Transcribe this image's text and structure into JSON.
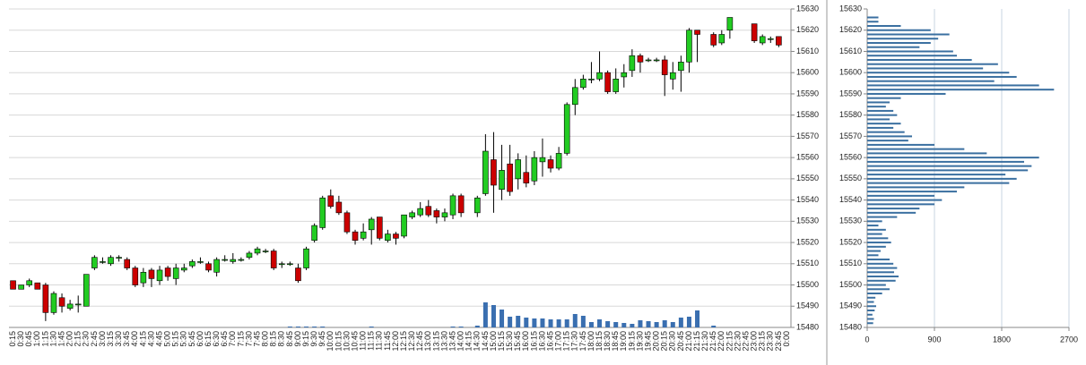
{
  "chart_data": [
    {
      "type": "candlestick",
      "categories": [
        "0:15",
        "0:30",
        "0:45",
        "1:00",
        "1:15",
        "1:30",
        "1:45",
        "2:00",
        "2:15",
        "2:30",
        "2:45",
        "3:00",
        "3:15",
        "3:30",
        "3:45",
        "4:00",
        "4:15",
        "4:30",
        "4:45",
        "5:00",
        "5:15",
        "5:30",
        "5:45",
        "6:00",
        "6:15",
        "6:30",
        "6:45",
        "7:00",
        "7:15",
        "7:30",
        "7:45",
        "8:00",
        "8:15",
        "8:30",
        "8:45",
        "9:00",
        "9:15",
        "9:30",
        "9:45",
        "10:00",
        "10:15",
        "10:30",
        "10:45",
        "11:00",
        "11:15",
        "11:30",
        "11:45",
        "12:00",
        "12:15",
        "12:30",
        "12:45",
        "13:00",
        "13:15",
        "13:30",
        "13:45",
        "14:00",
        "14:15",
        "14:30",
        "14:45",
        "15:00",
        "15:15",
        "15:30",
        "15:45",
        "16:00",
        "16:15",
        "16:30",
        "16:45",
        "17:00",
        "17:15",
        "17:30",
        "17:45",
        "18:00",
        "18:15",
        "18:30",
        "18:45",
        "19:00",
        "19:15",
        "19:30",
        "19:45",
        "20:00",
        "20:15",
        "20:30",
        "20:45",
        "21:00",
        "21:15",
        "21:30",
        "21:45",
        "22:00",
        "22:15",
        "22:30",
        "22:45",
        "23:00",
        "23:15",
        "23:30",
        "23:45",
        "0:00"
      ],
      "open": [
        15502,
        15498,
        15500,
        15501,
        15500,
        15487,
        15494,
        15489,
        15491,
        15490,
        15508,
        15511,
        15510,
        15513,
        15512,
        15508,
        15501,
        15507,
        15502,
        15508,
        15503,
        15507,
        15509,
        15511,
        15510,
        15506,
        15512,
        15511,
        15512,
        15513,
        15515,
        15516,
        15516,
        15510,
        15510,
        15508,
        15508,
        15521,
        15527,
        15542,
        15539,
        15534,
        15525,
        15522,
        15526,
        15532,
        15521,
        15524,
        15523,
        15532,
        15533,
        15537,
        15535,
        15532,
        15533,
        15542,
        null,
        15534,
        15543,
        15559,
        15545,
        15557,
        15550,
        15553,
        15549,
        15558,
        15559,
        15555,
        15562,
        15585,
        15593,
        15597,
        15597,
        15600,
        15591,
        15598,
        15601,
        15608,
        15606,
        15606,
        15606,
        15597,
        15601,
        15605,
        15620,
        null,
        15618,
        15614,
        15620,
        null,
        null,
        15623,
        15614,
        15616,
        15617,
        null
      ],
      "high": [
        15502,
        15500,
        15503,
        15501,
        15501,
        15497,
        15496,
        15493,
        15495,
        15505,
        15514,
        15513,
        15514,
        15514,
        15513,
        15509,
        15508,
        15508,
        15509,
        15509,
        15510,
        15510,
        15512,
        15513,
        15511,
        15513,
        15514,
        15515,
        15513,
        15516,
        15518,
        15517,
        15517,
        15511,
        15511,
        15510,
        15518,
        15529,
        15542,
        15545,
        15542,
        15535,
        15526,
        15529,
        15532,
        15532,
        15526,
        15525,
        15533,
        15535,
        15539,
        15540,
        15536,
        15536,
        15543,
        15543,
        null,
        15542,
        15571,
        15572,
        15566,
        15566,
        15562,
        15561,
        15563,
        15569,
        15561,
        15565,
        15586,
        15597,
        15599,
        15605,
        15610,
        15601,
        15602,
        15604,
        15611,
        15609,
        15607,
        15607,
        15608,
        15605,
        15608,
        15621,
        15620,
        null,
        15619,
        15620,
        15626,
        null,
        null,
        15623,
        15618,
        15617,
        15617,
        null
      ],
      "low": [
        15498,
        15498,
        15499,
        15498,
        15483,
        15486,
        15487,
        15488,
        15487,
        15490,
        15507,
        15510,
        15509,
        15511,
        15507,
        15499,
        15499,
        15499,
        15500,
        15502,
        15500,
        15506,
        15508,
        15510,
        15506,
        15504,
        15511,
        15510,
        15511,
        15512,
        15514,
        15515,
        15507,
        15508,
        15509,
        15501,
        15507,
        15520,
        15526,
        15536,
        15533,
        15524,
        15519,
        15521,
        15519,
        15521,
        15520,
        15519,
        15522,
        15531,
        15532,
        15532,
        15529,
        15530,
        15531,
        15532,
        null,
        15532,
        15542,
        15534,
        15540,
        15542,
        15545,
        15546,
        15547,
        15551,
        15553,
        15554,
        15561,
        15580,
        15592,
        15595,
        15596,
        15590,
        15590,
        15593,
        15598,
        15600,
        15605,
        15605,
        15589,
        15592,
        15591,
        15600,
        15605,
        null,
        15612,
        15613,
        15616,
        null,
        null,
        15614,
        15613,
        15614,
        15612,
        null
      ],
      "close": [
        15498,
        15500,
        15502,
        15498,
        15487,
        15496,
        15490,
        15491,
        15491,
        15505,
        15513,
        15511,
        15513,
        15513,
        15508,
        15500,
        15506,
        15503,
        15507,
        15504,
        15508,
        15508,
        15511,
        15511,
        15507,
        15512,
        15512,
        15512,
        15512,
        15515,
        15517,
        15516,
        15508,
        15510,
        15510,
        15502,
        15517,
        15528,
        15541,
        15537,
        15534,
        15525,
        15521,
        15525,
        15531,
        15522,
        15524,
        15522,
        15533,
        15534,
        15536,
        15533,
        15532,
        15534,
        15542,
        15534,
        null,
        15541,
        15563,
        15547,
        15554,
        15544,
        15559,
        15548,
        15560,
        15560,
        15555,
        15562,
        15585,
        15593,
        15597,
        15597,
        15600,
        15591,
        15597,
        15600,
        15608,
        15605,
        15606,
        15606,
        15599,
        15600,
        15605,
        15620,
        15618,
        null,
        15613,
        15618,
        15626,
        null,
        null,
        15615,
        15617,
        15616,
        15613,
        null
      ],
      "volume": [
        0,
        0,
        0,
        0,
        0,
        0,
        0,
        0,
        0,
        0,
        0,
        0,
        0,
        0,
        0,
        0,
        0,
        0,
        0,
        0,
        0,
        0,
        0,
        0,
        0,
        0,
        0,
        0,
        0,
        0,
        0,
        0,
        0,
        0,
        1,
        1,
        1,
        1,
        1,
        0,
        0,
        0,
        0,
        0,
        1,
        0,
        0,
        0,
        0,
        0,
        0,
        0,
        0,
        0,
        1,
        1,
        null,
        2,
        28,
        25,
        20,
        12,
        13,
        11,
        10,
        10,
        9,
        9,
        9,
        15,
        13,
        6,
        9,
        7,
        6,
        5,
        4,
        8,
        7,
        6,
        8,
        6,
        11,
        12,
        19,
        null,
        2,
        0,
        0,
        null,
        null,
        0,
        0,
        0,
        0,
        null
      ],
      "up_color": "#22cc22",
      "down_color": "#cc0000",
      "volume_color": "#3a6fb0",
      "ylim": [
        15480,
        15630
      ],
      "yticks": [
        15480,
        15490,
        15500,
        15510,
        15520,
        15530,
        15540,
        15550,
        15560,
        15570,
        15580,
        15590,
        15600,
        15610,
        15620,
        15630
      ],
      "grid": true
    },
    {
      "type": "hbar",
      "y": [
        15482,
        15484,
        15486,
        15488,
        15490,
        15492,
        15494,
        15496,
        15498,
        15500,
        15502,
        15504,
        15506,
        15508,
        15510,
        15512,
        15514,
        15516,
        15518,
        15520,
        15522,
        15524,
        15526,
        15528,
        15530,
        15532,
        15534,
        15536,
        15538,
        15540,
        15542,
        15544,
        15546,
        15548,
        15550,
        15552,
        15554,
        15556,
        15558,
        15560,
        15562,
        15564,
        15566,
        15568,
        15570,
        15572,
        15574,
        15576,
        15578,
        15580,
        15582,
        15584,
        15586,
        15588,
        15590,
        15592,
        15594,
        15596,
        15598,
        15600,
        15602,
        15604,
        15606,
        15608,
        15610,
        15612,
        15614,
        15616,
        15618,
        15620,
        15622,
        15624,
        15626
      ],
      "values": [
        80,
        90,
        70,
        100,
        120,
        90,
        110,
        200,
        300,
        250,
        380,
        420,
        360,
        400,
        350,
        300,
        150,
        180,
        250,
        320,
        280,
        200,
        250,
        150,
        200,
        400,
        650,
        700,
        900,
        1000,
        900,
        1200,
        1300,
        1900,
        2000,
        1850,
        2150,
        2200,
        2100,
        2300,
        1600,
        1300,
        900,
        550,
        600,
        500,
        350,
        450,
        300,
        400,
        350,
        250,
        300,
        450,
        1050,
        2500,
        2300,
        1700,
        2000,
        1900,
        1550,
        1750,
        1400,
        1200,
        1150,
        700,
        850,
        950,
        1100,
        850,
        450,
        150,
        150
      ],
      "color": "#3a6fa0",
      "xlim": [
        0,
        2700
      ],
      "xticks": [
        0,
        900,
        1800,
        2700
      ],
      "ylim": [
        15480,
        15630
      ],
      "yticks": [
        15480,
        15490,
        15500,
        15510,
        15520,
        15530,
        15540,
        15550,
        15560,
        15570,
        15580,
        15590,
        15600,
        15610,
        15620,
        15630
      ],
      "grid": true
    }
  ]
}
